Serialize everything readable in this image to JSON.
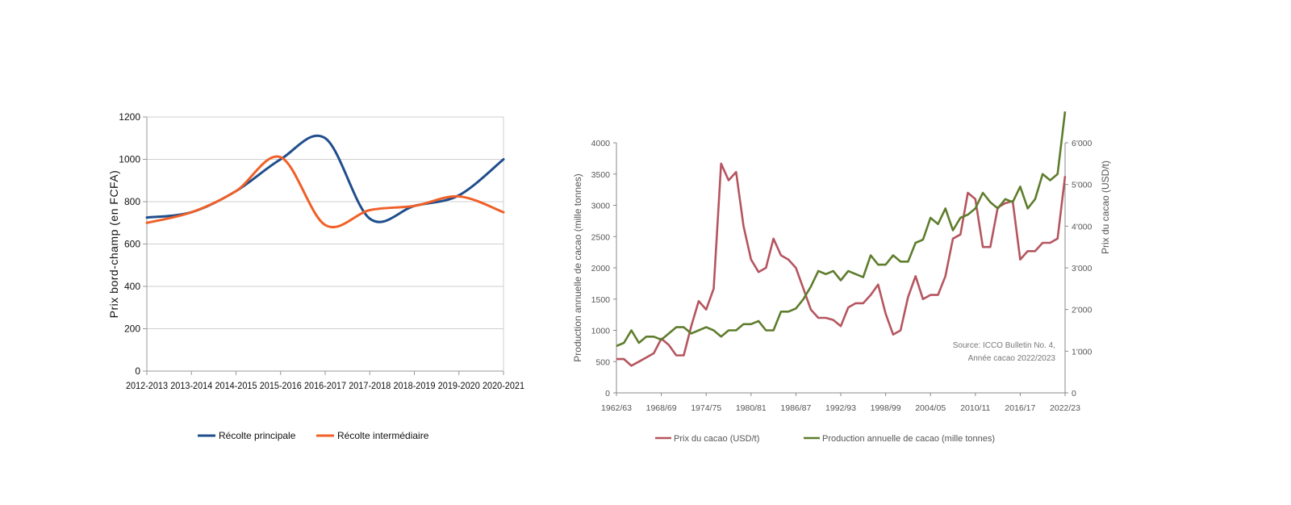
{
  "chart_data": [
    {
      "type": "line",
      "categories": [
        "2012-2013",
        "2013-2014",
        "2014-2015",
        "2015-2016",
        "2016-2017",
        "2017-2018",
        "2018-2019",
        "2019-2020",
        "2020-2021"
      ],
      "series": [
        {
          "name": "Récolte principale",
          "color": "#1f4e8c",
          "values": [
            725,
            750,
            850,
            1000,
            1100,
            720,
            780,
            830,
            1000
          ]
        },
        {
          "name": "Récolte intermédiaire",
          "color": "#f06028",
          "values": [
            700,
            750,
            850,
            1010,
            690,
            760,
            780,
            825,
            750
          ]
        }
      ],
      "ylabel": "Prix bord-champ (en FCFA)",
      "ylim": [
        0,
        1200
      ],
      "yticks": [
        "0",
        "200",
        "400",
        "600",
        "800",
        "1000",
        "1200"
      ],
      "grid": true,
      "legend_position": "bottom"
    },
    {
      "type": "line",
      "x_start": 1962,
      "x_end": 2022,
      "xticks": [
        "1962/63",
        "1968/69",
        "1974/75",
        "1980/81",
        "1986/87",
        "1992/93",
        "1998/99",
        "2004/05",
        "2010/11",
        "2016/17",
        "2022/23"
      ],
      "series": [
        {
          "name": "Prix du cacao (USD/t)",
          "color": "#b5555f",
          "axis": "right",
          "values": [
            810,
            810,
            650,
            750,
            850,
            950,
            1300,
            1150,
            900,
            900,
            1600,
            2200,
            2000,
            2500,
            5500,
            5100,
            5300,
            4000,
            3200,
            2900,
            3000,
            3700,
            3300,
            3200,
            3000,
            2500,
            2000,
            1800,
            1800,
            1750,
            1600,
            2050,
            2150,
            2150,
            2350,
            2600,
            1900,
            1400,
            1500,
            2300,
            2800,
            2250,
            2350,
            2350,
            2800,
            3700,
            3800,
            4800,
            4650,
            3500,
            3500,
            4450,
            4550,
            4600,
            3200,
            3400,
            3400,
            3600,
            3600,
            3700,
            5200
          ]
        },
        {
          "name": "Production annuelle de cacao (mille tonnes)",
          "color": "#5e7d2c",
          "axis": "left",
          "values": [
            750,
            800,
            1000,
            800,
            900,
            900,
            850,
            950,
            1050,
            1050,
            950,
            1000,
            1050,
            1000,
            900,
            1000,
            1000,
            1100,
            1100,
            1150,
            1000,
            1000,
            1300,
            1300,
            1350,
            1500,
            1700,
            1950,
            1900,
            1950,
            1800,
            1950,
            1900,
            1850,
            2200,
            2050,
            2050,
            2200,
            2100,
            2100,
            2400,
            2450,
            2800,
            2700,
            2950,
            2600,
            2800,
            2850,
            2950,
            3200,
            3050,
            2950,
            3100,
            3050,
            3300,
            2950,
            3100,
            3500,
            3400,
            3500,
            4500
          ]
        }
      ],
      "ylabel_left": "Production annuelle de cacao (mille tonnes)",
      "ylabel_right": "Prix du cacao (USD/t)",
      "ylim_left": [
        0,
        4000
      ],
      "ylim_right": [
        0,
        6000
      ],
      "yticks_left": [
        "0",
        "500",
        "1000",
        "1500",
        "2000",
        "2500",
        "3000",
        "3500",
        "4000"
      ],
      "yticks_right": [
        "0",
        "1'000",
        "2'000",
        "3'000",
        "4'000",
        "5'000",
        "6'000"
      ],
      "annotation": [
        "Source: ICCO Bulletin No. 4,",
        "Année cacao 2022/2023"
      ],
      "grid": false,
      "legend_position": "bottom"
    }
  ]
}
